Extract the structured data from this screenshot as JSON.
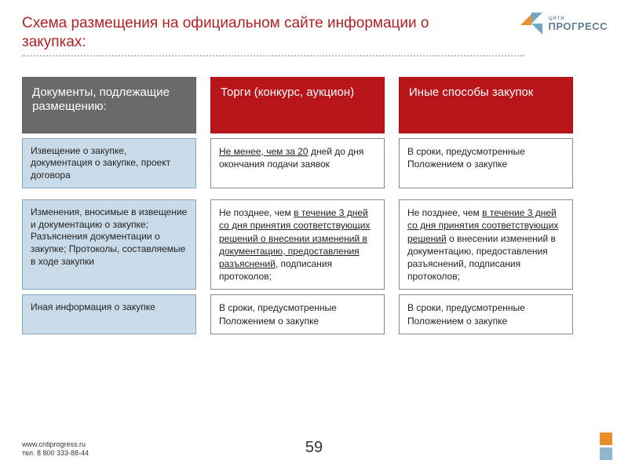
{
  "title": "Схема размещения на официальном сайте информации о закупках:",
  "logo": {
    "small": "цнти",
    "large": "ПРОГРЕСС"
  },
  "headers": {
    "col0": "Документы, подлежащие размещению:",
    "col1": "Торги (конкурс, аукцион)",
    "col2": "Иные способы закупок"
  },
  "rows": [
    {
      "label": "Извещение о закупке, документация о закупке, проект договора",
      "c1_pre": "",
      "c1_u": "Не менее, чем за 20",
      "c1_post": " дней до дня окончания подачи заявок",
      "c2_pre": "В сроки, предусмотренные Положением о закупке",
      "c2_u": "",
      "c2_post": ""
    },
    {
      "label": "Изменения, вносимые в извещение и документацию о закупке;\nРазъяснения документации о закупке;\nПротоколы, составляемые в ходе\nзакупки",
      "c1_pre": "Не позднее, чем ",
      "c1_u": "в течение 3 дней со дня принятия соответствующих решений о внесении изменений в документацию, предоставления разъяснений",
      "c1_post": ", подписания протоколов;",
      "c2_pre": "Не позднее, чем ",
      "c2_u": "в течение 3 дней со дня принятия соответствующих решений",
      "c2_post": " о внесении изменений в документацию, предоставления разъяснений, подписания протоколов;"
    },
    {
      "label": "Иная информация о закупке",
      "c1_pre": "В сроки, предусмотренные Положением о закупке",
      "c1_u": "",
      "c1_post": "",
      "c2_pre": "В сроки, предусмотренные Положением о закупке",
      "c2_u": "",
      "c2_post": ""
    }
  ],
  "footer": {
    "url": "www.cntiprogress.ru",
    "tel": "тел. 8 800 333-88-44"
  },
  "page": "59",
  "colors": {
    "title": "#b22222",
    "hdr_grey": "#6a6a6a",
    "hdr_red": "#b8151b",
    "label_bg": "#c9dbe8",
    "label_border": "#87a8c0",
    "cell_border": "#888888",
    "orange": "#e98f2b",
    "blue": "#8fb6cc"
  }
}
